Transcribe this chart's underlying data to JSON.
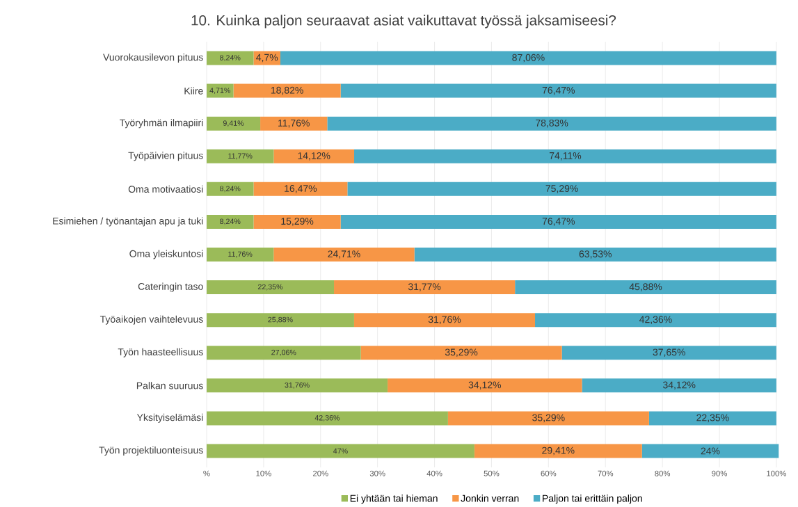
{
  "chart_data": {
    "type": "bar",
    "orientation": "horizontal",
    "stacked": true,
    "title": "10. Kuinka paljon seuraavat asiat vaikuttavat työssä jaksamiseesi?",
    "categories": [
      "Vuorokausilevon pituus",
      "Kiire",
      "Työryhmän ilmapiiri",
      "Työpäivien pituus",
      "Oma motivaatiosi",
      "Esimiehen / työnantajan apu ja tuki",
      "Oma yleiskuntosi",
      "Cateringin taso",
      "Työaikojen vaihtelevuus",
      "Työn haasteellisuus",
      "Palkan suuruus",
      "Yksityiselämäsi",
      "Työn projektiluonteisuus"
    ],
    "series": [
      {
        "name": "Ei yhtään tai hieman",
        "color": "#9bbb59",
        "values": [
          8.24,
          4.71,
          9.41,
          11.77,
          8.24,
          8.24,
          11.76,
          22.35,
          25.88,
          27.06,
          31.76,
          42.36,
          47
        ],
        "value_labels": [
          "8,24%",
          "4,71%",
          "9,41%",
          "11,77%",
          "8,24%",
          "8,24%",
          "11,76%",
          "22,35%",
          "25,88%",
          "27,06%",
          "31,76%",
          "42,36%",
          "47%"
        ]
      },
      {
        "name": "Jonkin verran",
        "color": "#f79646",
        "values": [
          4.7,
          18.82,
          11.76,
          14.12,
          16.47,
          15.29,
          24.71,
          31.77,
          31.76,
          35.29,
          34.12,
          35.29,
          29.41
        ],
        "value_labels": [
          "4,7%",
          "18,82%",
          "11,76%",
          "14,12%",
          "16,47%",
          "15,29%",
          "24,71%",
          "31,77%",
          "31,76%",
          "35,29%",
          "34,12%",
          "35,29%",
          "29,41%"
        ]
      },
      {
        "name": "Paljon tai erittäin paljon",
        "color": "#4bacc6",
        "values": [
          87.06,
          76.47,
          78.83,
          74.11,
          75.29,
          76.47,
          63.53,
          45.88,
          42.36,
          37.65,
          34.12,
          22.35,
          24
        ],
        "value_labels": [
          "87,06%",
          "76,47%",
          "78,83%",
          "74,11%",
          "75,29%",
          "76,47%",
          "63,53%",
          "45,88%",
          "42,36%",
          "37,65%",
          "34,12%",
          "22,35%",
          "24%"
        ]
      }
    ],
    "xlim": [
      0,
      100.5
    ],
    "xticks": [
      {
        "value": 0,
        "label": "%"
      },
      {
        "value": 10,
        "label": "10%"
      },
      {
        "value": 20,
        "label": "20%"
      },
      {
        "value": 30,
        "label": "30%"
      },
      {
        "value": 40,
        "label": "40%"
      },
      {
        "value": 50,
        "label": "50%"
      },
      {
        "value": 60,
        "label": "60%"
      },
      {
        "value": 70,
        "label": "70%"
      },
      {
        "value": 80,
        "label": "80%"
      },
      {
        "value": 90,
        "label": "90%"
      },
      {
        "value": 100,
        "label": "100%"
      }
    ],
    "grid": "x",
    "legend": "bottom"
  }
}
